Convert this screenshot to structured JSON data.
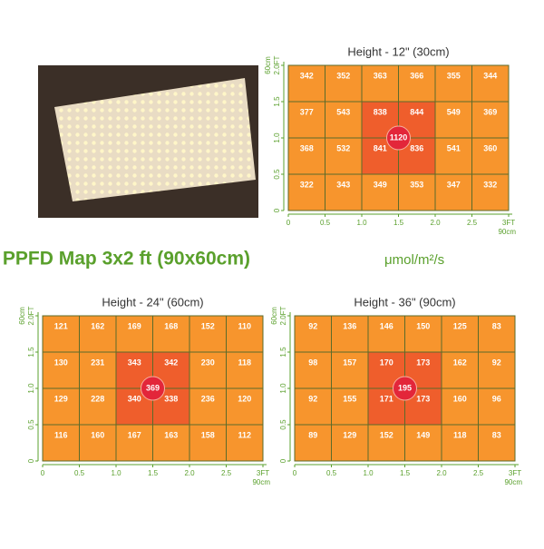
{
  "title": "PPFD Map 3x2 ft (90x60cm)",
  "unit": "μmol/m²/s",
  "x_ticks": [
    "0",
    "0.5",
    "1.0",
    "1.5",
    "2.0",
    "2.5",
    "3FT"
  ],
  "x_unit": "90cm",
  "y_ticks": [
    "0",
    "0.5",
    "1.0",
    "1.5",
    "2.0FT"
  ],
  "y_unit": "60cm",
  "maps": [
    {
      "title": "Height - 12\" (30cm)",
      "center": "1120",
      "rows": [
        [
          "342",
          "352",
          "363",
          "366",
          "355",
          "344"
        ],
        [
          "377",
          "543",
          "838",
          "844",
          "549",
          "369"
        ],
        [
          "368",
          "532",
          "841",
          "836",
          "541",
          "360"
        ],
        [
          "322",
          "343",
          "349",
          "353",
          "347",
          "332"
        ]
      ]
    },
    {
      "title": "Height - 24\" (60cm)",
      "center": "369",
      "rows": [
        [
          "121",
          "162",
          "169",
          "168",
          "152",
          "110"
        ],
        [
          "130",
          "231",
          "343",
          "342",
          "230",
          "118"
        ],
        [
          "129",
          "228",
          "340",
          "338",
          "236",
          "120"
        ],
        [
          "116",
          "160",
          "167",
          "163",
          "158",
          "112"
        ]
      ]
    },
    {
      "title": "Height - 36\" (90cm)",
      "center": "195",
      "rows": [
        [
          "92",
          "136",
          "146",
          "150",
          "125",
          "83"
        ],
        [
          "98",
          "157",
          "170",
          "173",
          "162",
          "92"
        ],
        [
          "92",
          "155",
          "171",
          "173",
          "160",
          "96"
        ],
        [
          "89",
          "129",
          "152",
          "149",
          "118",
          "83"
        ]
      ]
    }
  ]
}
